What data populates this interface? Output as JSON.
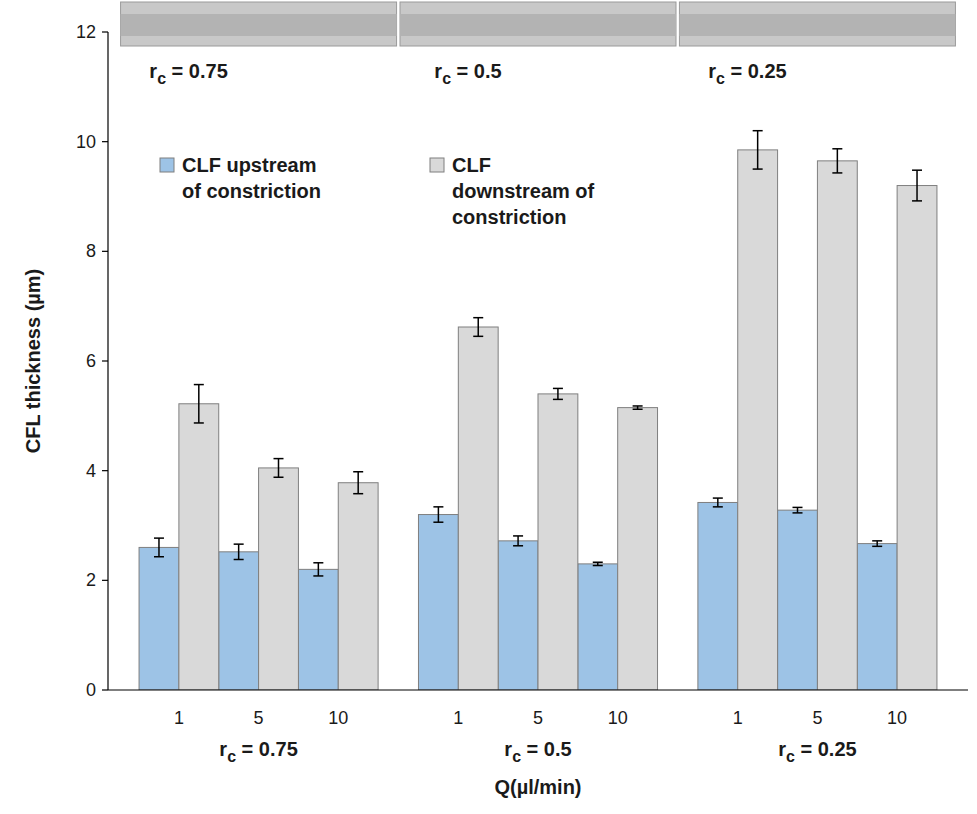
{
  "chart_data": {
    "type": "bar",
    "categories": [
      "1",
      "5",
      "10",
      "1",
      "5",
      "10",
      "1",
      "5",
      "10"
    ],
    "groups": [
      "rc = 0.75",
      "rc = 0.5",
      "rc = 0.25"
    ],
    "image_labels": [
      "rc = 0.75",
      "rc = 0.5",
      "rc = 0.25"
    ],
    "x_label": "Q(µl/min)",
    "y_label": "CFL thickness (µm)",
    "ylim": [
      0,
      12
    ],
    "yticks": [
      0,
      2,
      4,
      6,
      8,
      10,
      12
    ],
    "grid": false,
    "legend": "top-left",
    "series": [
      {
        "name": "CLF upstream of constriction",
        "color": "#9dc3e6",
        "values": [
          2.6,
          2.52,
          2.2,
          3.2,
          2.72,
          2.3,
          3.42,
          3.28,
          2.67
        ],
        "errors": [
          0.17,
          0.14,
          0.12,
          0.14,
          0.09,
          0.03,
          0.08,
          0.05,
          0.05
        ]
      },
      {
        "name": "CLF downstream of constriction",
        "color": "#d9d9d9",
        "values": [
          5.22,
          4.05,
          3.78,
          6.62,
          5.4,
          5.15,
          9.85,
          9.65,
          9.2
        ],
        "errors": [
          0.35,
          0.17,
          0.2,
          0.17,
          0.1,
          0.03,
          0.35,
          0.22,
          0.28
        ]
      }
    ]
  }
}
